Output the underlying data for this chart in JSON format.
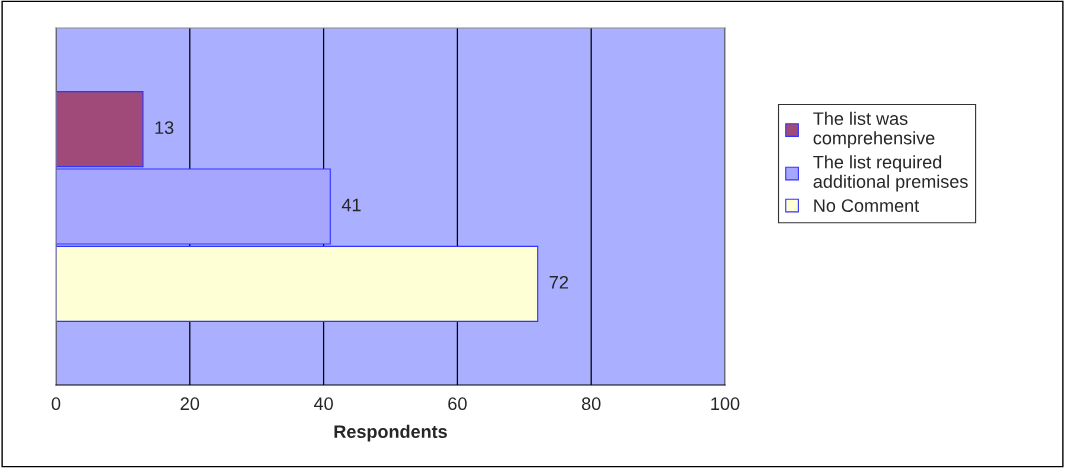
{
  "chart_data": {
    "type": "bar",
    "orientation": "horizontal",
    "xlabel": "Respondents",
    "categories": [
      null
    ],
    "series": [
      {
        "name": "The list was\ncomprehensive",
        "color": "#a04a7a",
        "values": [
          13
        ]
      },
      {
        "name": "The list required\nadditional premises",
        "color": "#a6a6ff",
        "values": [
          41
        ]
      },
      {
        "name": "No Comment",
        "color": "#ffffd6",
        "values": [
          72
        ]
      }
    ],
    "xlim": [
      0,
      100
    ],
    "xticks": [
      0,
      20,
      40,
      60,
      80,
      100
    ],
    "grid": "x",
    "legend": "right",
    "data_labels": true
  }
}
